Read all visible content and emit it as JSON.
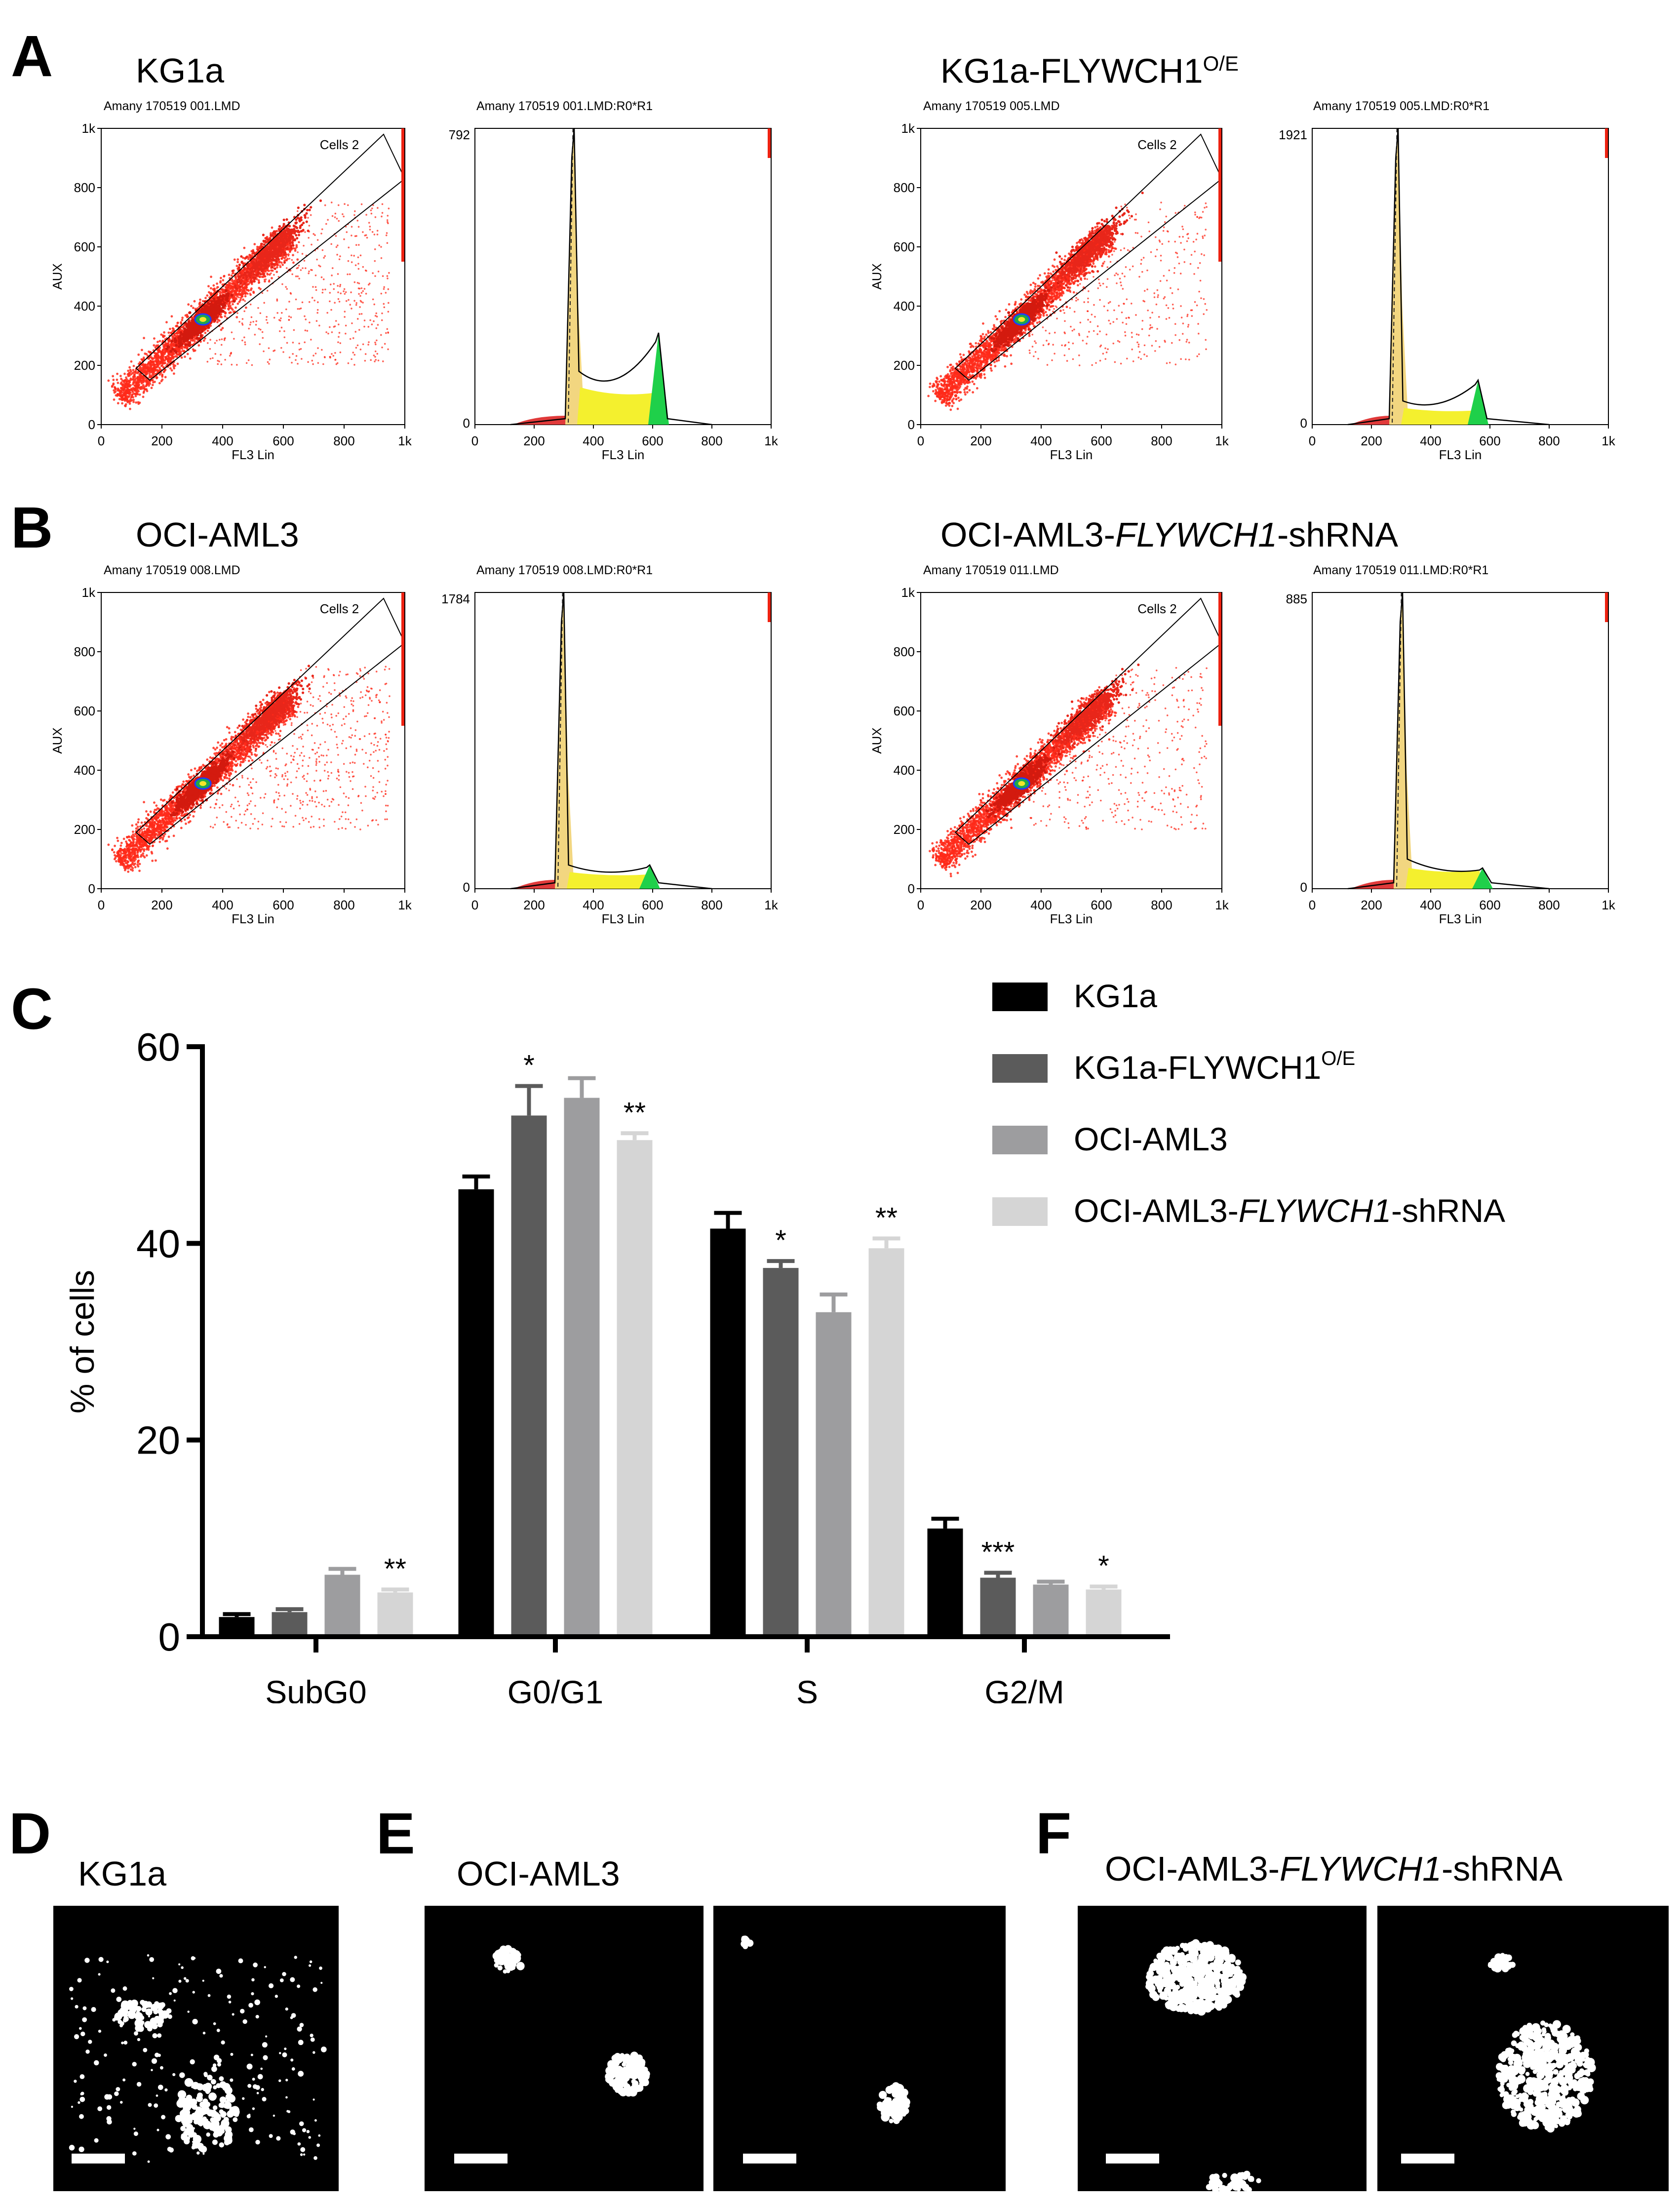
{
  "colors": {
    "kg1a": "#000000",
    "kg1a_oe": "#5b5b5b",
    "oci": "#9d9d9f",
    "oci_sh": "#d5d5d5",
    "scatter": "#ff2a1a",
    "g1_fill": "#f4f02e",
    "g2_fill": "#1fd04a",
    "sub_fill": "#e03a3a"
  },
  "panelA": {
    "letter": "A",
    "left_label": "KG1a",
    "right_label": "KG1a-FLYWCH1",
    "right_label_sup": "O/E"
  },
  "panelB": {
    "letter": "B",
    "left_label": "OCI-AML3",
    "right_label_prefix": "OCI-AML3-",
    "right_label_italic": "FLYWCH1",
    "right_label_suffix": "-shRNA"
  },
  "flow": {
    "axis_x_label": "FL3 Lin",
    "axis_y_label": "AUX",
    "gate_label": "Cells 2",
    "ticks": [
      "0",
      "200",
      "400",
      "600",
      "800",
      "1k"
    ],
    "plots": [
      {
        "scatter_title": "Amany 170519 001.LMD",
        "hist_title": "Amany 170519 001.LMD:R0*R1",
        "hist_max": "792"
      },
      {
        "scatter_title": "Amany 170519 005.LMD",
        "hist_title": "Amany 170519 005.LMD:R0*R1",
        "hist_max": "1921"
      },
      {
        "scatter_title": "Amany 170519 008.LMD",
        "hist_title": "Amany 170519 008.LMD:R0*R1",
        "hist_max": "1784"
      },
      {
        "scatter_title": "Amany 170519 011.LMD",
        "hist_title": "Amany 170519 011.LMD:R0*R1",
        "hist_max": "885"
      }
    ]
  },
  "chart_data": {
    "type": "bar",
    "title": "",
    "xlabel": "",
    "ylabel": "% of cells",
    "ylim": [
      0,
      60
    ],
    "yticks": [
      "0",
      "20",
      "40",
      "60"
    ],
    "categories": [
      "SubG0",
      "G0/G1",
      "S",
      "G2/M"
    ],
    "series": [
      {
        "name": "KG1a",
        "values": [
          2.0,
          45.5,
          41.5,
          11.0
        ],
        "errors": [
          0.3,
          1.3,
          1.6,
          1.0
        ],
        "sig": [
          "",
          "",
          "",
          ""
        ]
      },
      {
        "name": "KG1a-FLYWCH1O/E",
        "values": [
          2.5,
          53.0,
          37.5,
          6.0
        ],
        "errors": [
          0.3,
          3.0,
          0.7,
          0.5
        ],
        "sig": [
          "",
          "*",
          "*",
          "***"
        ]
      },
      {
        "name": "OCI-AML3",
        "values": [
          6.3,
          54.8,
          33.0,
          5.3
        ],
        "errors": [
          0.6,
          2.0,
          1.8,
          0.3
        ],
        "sig": [
          "",
          "",
          "",
          ""
        ]
      },
      {
        "name": "OCI-AML3-FLYWCH1-shRNA",
        "values": [
          4.5,
          50.5,
          39.5,
          4.8
        ],
        "errors": [
          0.3,
          0.7,
          1.0,
          0.3
        ],
        "sig": [
          "**",
          "**",
          "**",
          "*"
        ]
      }
    ],
    "legend_position": "top-right"
  },
  "panelC": {
    "letter": "C",
    "legend": [
      {
        "text": "KG1a"
      },
      {
        "text": "KG1a-FLYWCH1",
        "sup": "O/E"
      },
      {
        "text": "OCI-AML3"
      },
      {
        "prefix": "OCI-AML3-",
        "italic": "FLYWCH1",
        "suffix": "-shRNA"
      }
    ]
  },
  "panelD": {
    "letter": "D",
    "label": "KG1a"
  },
  "panelE": {
    "letter": "E",
    "label": "OCI-AML3"
  },
  "panelF": {
    "letter": "F",
    "label_prefix": "OCI-AML3-",
    "label_italic": "FLYWCH1",
    "label_suffix": "-shRNA"
  }
}
